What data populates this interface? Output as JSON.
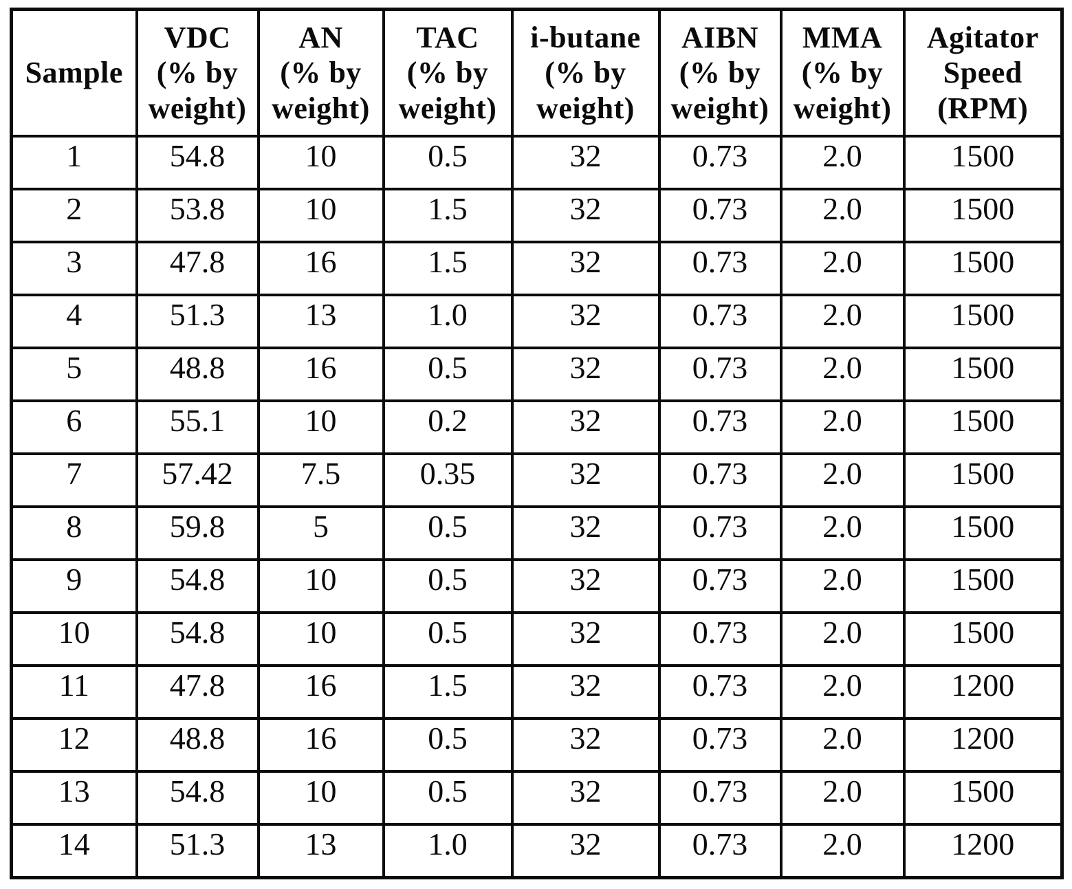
{
  "colors": {
    "ink": "#0b0b0b",
    "paper": "#ffffff"
  },
  "table": {
    "columns": [
      {
        "id": "sample",
        "header_lines": [
          "Sample"
        ]
      },
      {
        "id": "vdc",
        "header_lines": [
          "VDC",
          "(% by",
          "weight)"
        ]
      },
      {
        "id": "an",
        "header_lines": [
          "AN",
          "(% by",
          "weight)"
        ]
      },
      {
        "id": "tac",
        "header_lines": [
          "TAC",
          "(% by",
          "weight)"
        ]
      },
      {
        "id": "i_butane",
        "header_lines": [
          "i-butane",
          "(% by",
          "weight)"
        ]
      },
      {
        "id": "aibn",
        "header_lines": [
          "AIBN",
          "(% by",
          "weight)"
        ]
      },
      {
        "id": "mma",
        "header_lines": [
          "MMA",
          "(% by",
          "weight)"
        ]
      },
      {
        "id": "agitator_speed",
        "header_lines": [
          "Agitator",
          "Speed",
          "(RPM)"
        ]
      }
    ],
    "rows": [
      [
        "1",
        "54.8",
        "10",
        "0.5",
        "32",
        "0.73",
        "2.0",
        "1500"
      ],
      [
        "2",
        "53.8",
        "10",
        "1.5",
        "32",
        "0.73",
        "2.0",
        "1500"
      ],
      [
        "3",
        "47.8",
        "16",
        "1.5",
        "32",
        "0.73",
        "2.0",
        "1500"
      ],
      [
        "4",
        "51.3",
        "13",
        "1.0",
        "32",
        "0.73",
        "2.0",
        "1500"
      ],
      [
        "5",
        "48.8",
        "16",
        "0.5",
        "32",
        "0.73",
        "2.0",
        "1500"
      ],
      [
        "6",
        "55.1",
        "10",
        "0.2",
        "32",
        "0.73",
        "2.0",
        "1500"
      ],
      [
        "7",
        "57.42",
        "7.5",
        "0.35",
        "32",
        "0.73",
        "2.0",
        "1500"
      ],
      [
        "8",
        "59.8",
        "5",
        "0.5",
        "32",
        "0.73",
        "2.0",
        "1500"
      ],
      [
        "9",
        "54.8",
        "10",
        "0.5",
        "32",
        "0.73",
        "2.0",
        "1500"
      ],
      [
        "10",
        "54.8",
        "10",
        "0.5",
        "32",
        "0.73",
        "2.0",
        "1500"
      ],
      [
        "11",
        "47.8",
        "16",
        "1.5",
        "32",
        "0.73",
        "2.0",
        "1200"
      ],
      [
        "12",
        "48.8",
        "16",
        "0.5",
        "32",
        "0.73",
        "2.0",
        "1200"
      ],
      [
        "13",
        "54.8",
        "10",
        "0.5",
        "32",
        "0.73",
        "2.0",
        "1500"
      ],
      [
        "14",
        "51.3",
        "13",
        "1.0",
        "32",
        "0.73",
        "2.0",
        "1200"
      ]
    ]
  }
}
